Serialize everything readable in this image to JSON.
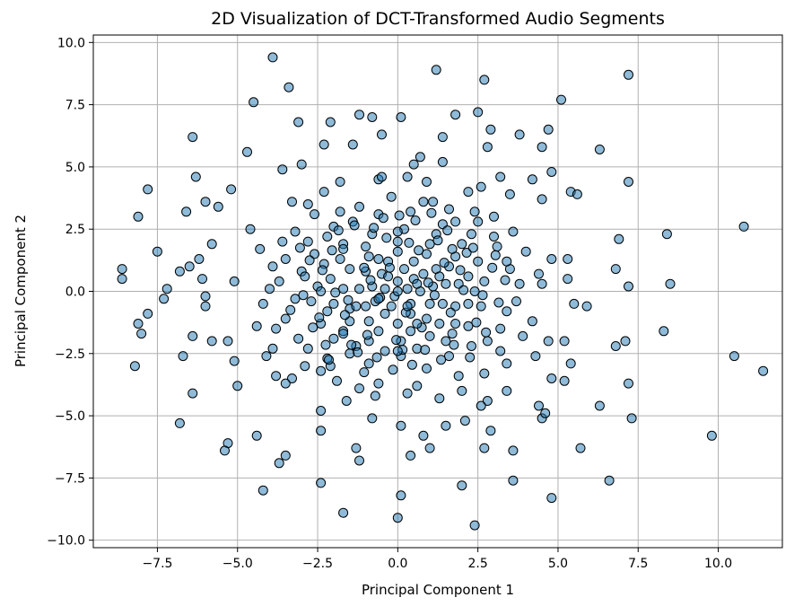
{
  "chart_data": {
    "type": "scatter",
    "title": "2D Visualization of DCT-Transformed Audio Segments",
    "xlabel": "Principal Component 1",
    "ylabel": "Principal Component 2",
    "xlim": [
      -9.5,
      12.0
    ],
    "ylim": [
      -10.3,
      10.3
    ],
    "xticks": [
      -7.5,
      -5.0,
      -2.5,
      0.0,
      2.5,
      5.0,
      7.5,
      10.0
    ],
    "xtick_labels": [
      "−7.5",
      "−5.0",
      "−2.5",
      "0.0",
      "2.5",
      "5.0",
      "7.5",
      "10.0"
    ],
    "yticks": [
      -10.0,
      -7.5,
      -5.0,
      -2.5,
      0.0,
      2.5,
      5.0,
      7.5,
      10.0
    ],
    "ytick_labels": [
      "−10.0",
      "−7.5",
      "−5.0",
      "−2.5",
      "0.0",
      "2.5",
      "5.0",
      "7.5",
      "10.0"
    ],
    "grid": true,
    "marker_color": "#1f77b4",
    "marker_edge_color": "#000000",
    "marker_alpha": 0.5,
    "points": [
      [
        -3.9,
        9.4
      ],
      [
        1.2,
        8.9
      ],
      [
        2.7,
        8.5
      ],
      [
        7.2,
        8.7
      ],
      [
        -3.4,
        8.2
      ],
      [
        -4.5,
        7.6
      ],
      [
        5.1,
        7.7
      ],
      [
        -1.2,
        7.1
      ],
      [
        -0.8,
        7.0
      ],
      [
        0.1,
        7.0
      ],
      [
        1.8,
        7.1
      ],
      [
        2.5,
        7.2
      ],
      [
        -3.1,
        6.8
      ],
      [
        -2.1,
        6.8
      ],
      [
        -6.4,
        6.2
      ],
      [
        -0.5,
        6.3
      ],
      [
        1.4,
        6.2
      ],
      [
        2.9,
        6.5
      ],
      [
        3.8,
        6.3
      ],
      [
        4.7,
        6.5
      ],
      [
        -4.7,
        5.6
      ],
      [
        -1.4,
        5.9
      ],
      [
        -2.3,
        5.9
      ],
      [
        0.7,
        5.4
      ],
      [
        2.8,
        5.8
      ],
      [
        4.5,
        5.8
      ],
      [
        6.3,
        5.7
      ],
      [
        -3.6,
        4.9
      ],
      [
        -3.0,
        5.1
      ],
      [
        0.5,
        5.1
      ],
      [
        1.4,
        5.2
      ],
      [
        3.2,
        4.6
      ],
      [
        4.8,
        4.8
      ],
      [
        -7.8,
        4.1
      ],
      [
        -6.3,
        4.6
      ],
      [
        -5.2,
        4.1
      ],
      [
        -1.8,
        4.4
      ],
      [
        -0.6,
        4.5
      ],
      [
        0.9,
        4.4
      ],
      [
        2.6,
        4.2
      ],
      [
        4.2,
        4.5
      ],
      [
        5.4,
        4.0
      ],
      [
        7.2,
        4.4
      ],
      [
        -6.0,
        3.6
      ],
      [
        -6.6,
        3.2
      ],
      [
        -5.6,
        3.4
      ],
      [
        -3.3,
        3.6
      ],
      [
        -2.8,
        3.5
      ],
      [
        -0.2,
        3.8
      ],
      [
        1.1,
        3.6
      ],
      [
        3.5,
        3.9
      ],
      [
        4.5,
        3.7
      ],
      [
        5.6,
        3.9
      ],
      [
        -8.1,
        3.0
      ],
      [
        -7.5,
        1.6
      ],
      [
        -6.2,
        1.3
      ],
      [
        -5.8,
        1.9
      ],
      [
        -4.6,
        2.5
      ],
      [
        -4.3,
        1.7
      ],
      [
        -6.5,
        1.0
      ],
      [
        -6.8,
        0.8
      ],
      [
        -8.6,
        0.9
      ],
      [
        -8.6,
        0.5
      ],
      [
        -7.2,
        0.1
      ],
      [
        -7.3,
        -0.3
      ],
      [
        -6.1,
        0.5
      ],
      [
        -6.0,
        -0.2
      ],
      [
        -5.1,
        0.4
      ],
      [
        -4.0,
        0.1
      ],
      [
        -6.0,
        -0.6
      ],
      [
        -7.8,
        -0.9
      ],
      [
        -8.1,
        -1.3
      ],
      [
        -8.0,
        -1.7
      ],
      [
        -6.7,
        -2.6
      ],
      [
        -6.4,
        -1.8
      ],
      [
        -5.8,
        -2.0
      ],
      [
        -5.3,
        -2.0
      ],
      [
        -5.1,
        -2.8
      ],
      [
        -4.1,
        -2.6
      ],
      [
        -3.8,
        -3.4
      ],
      [
        -8.2,
        -3.0
      ],
      [
        -5.0,
        -3.8
      ],
      [
        -6.4,
        -4.1
      ],
      [
        -6.8,
        -5.3
      ],
      [
        -4.4,
        -5.8
      ],
      [
        -5.3,
        -6.1
      ],
      [
        -5.4,
        -6.4
      ],
      [
        -3.5,
        -6.6
      ],
      [
        -3.7,
        -6.9
      ],
      [
        -2.4,
        -5.6
      ],
      [
        -2.4,
        -4.8
      ],
      [
        -1.6,
        -4.4
      ],
      [
        -0.8,
        -5.1
      ],
      [
        0.1,
        -5.4
      ],
      [
        0.8,
        -5.8
      ],
      [
        1.5,
        -5.4
      ],
      [
        2.1,
        -5.2
      ],
      [
        2.9,
        -5.6
      ],
      [
        4.5,
        -5.1
      ],
      [
        4.6,
        -4.9
      ],
      [
        6.3,
        -4.6
      ],
      [
        7.3,
        -5.1
      ],
      [
        -1.3,
        -6.3
      ],
      [
        -1.2,
        -6.8
      ],
      [
        0.4,
        -6.6
      ],
      [
        1.0,
        -6.3
      ],
      [
        2.7,
        -6.3
      ],
      [
        3.6,
        -6.4
      ],
      [
        5.7,
        -6.3
      ],
      [
        -2.4,
        -7.7
      ],
      [
        -1.7,
        -8.9
      ],
      [
        -4.2,
        -8.0
      ],
      [
        0.1,
        -8.2
      ],
      [
        0.0,
        -9.1
      ],
      [
        2.0,
        -7.8
      ],
      [
        3.6,
        -7.6
      ],
      [
        4.8,
        -8.3
      ],
      [
        6.6,
        -7.6
      ],
      [
        2.4,
        -9.4
      ],
      [
        7.2,
        -3.7
      ],
      [
        8.3,
        -1.6
      ],
      [
        9.8,
        -5.8
      ],
      [
        10.5,
        -2.6
      ],
      [
        11.4,
        -3.2
      ],
      [
        10.8,
        2.6
      ],
      [
        8.4,
        2.3
      ],
      [
        8.5,
        0.3
      ],
      [
        6.9,
        2.1
      ],
      [
        6.8,
        0.9
      ],
      [
        7.2,
        0.2
      ],
      [
        5.9,
        -0.6
      ],
      [
        5.3,
        1.3
      ],
      [
        5.3,
        0.5
      ],
      [
        5.5,
        -0.5
      ],
      [
        6.8,
        -2.2
      ],
      [
        7.1,
        -2.0
      ],
      [
        5.2,
        -2.0
      ],
      [
        4.7,
        -2.0
      ],
      [
        5.4,
        -2.9
      ],
      [
        5.2,
        -3.6
      ],
      [
        4.8,
        -3.5
      ],
      [
        4.3,
        -2.6
      ],
      [
        3.4,
        -2.9
      ],
      [
        2.7,
        -3.3
      ],
      [
        2.8,
        -4.4
      ],
      [
        2.6,
        -4.6
      ],
      [
        -3.3,
        -3.5
      ],
      [
        -3.5,
        -3.7
      ],
      [
        -2.9,
        -3.0
      ],
      [
        -2.1,
        -3.0
      ],
      [
        -1.2,
        -3.9
      ],
      [
        -0.6,
        -3.7
      ],
      [
        0.3,
        -4.1
      ],
      [
        1.3,
        -4.3
      ],
      [
        2.0,
        -4.0
      ],
      [
        3.4,
        -4.0
      ],
      [
        4.4,
        -4.6
      ],
      [
        4.8,
        1.3
      ],
      [
        4.5,
        0.3
      ],
      [
        3.5,
        0.9
      ],
      [
        3.0,
        2.2
      ],
      [
        2.5,
        2.8
      ],
      [
        1.8,
        2.8
      ],
      [
        -2.0,
        2.6
      ],
      [
        -2.8,
        2.0
      ],
      [
        -3.5,
        1.3
      ],
      [
        -3.0,
        0.8
      ],
      [
        -3.7,
        0.4
      ],
      [
        -3.2,
        -0.3
      ],
      [
        -3.5,
        -1.1
      ],
      [
        -3.8,
        -1.5
      ],
      [
        -3.1,
        -1.9
      ],
      [
        -2.8,
        -2.3
      ],
      [
        -2.2,
        -2.7
      ],
      [
        -1.5,
        -2.5
      ],
      [
        -0.9,
        -2.9
      ],
      [
        0.1,
        -2.6
      ],
      [
        0.9,
        -3.1
      ],
      [
        1.6,
        -2.6
      ],
      [
        2.3,
        -2.2
      ],
      [
        2.8,
        -2.0
      ],
      [
        3.2,
        -1.5
      ],
      [
        3.4,
        -0.8
      ],
      [
        3.7,
        -0.4
      ],
      [
        3.8,
        0.3
      ],
      [
        3.4,
        1.2
      ],
      [
        3.1,
        1.8
      ],
      [
        2.3,
        2.3
      ],
      [
        1.4,
        2.7
      ],
      [
        0.4,
        3.2
      ],
      [
        -0.6,
        3.1
      ],
      [
        -1.4,
        2.8
      ],
      [
        -2.2,
        2.2
      ],
      [
        -2.6,
        1.5
      ],
      [
        -2.9,
        0.6
      ],
      [
        -2.7,
        -0.4
      ],
      [
        -2.4,
        -1.3
      ],
      [
        -2.0,
        -1.9
      ],
      [
        -1.3,
        -2.2
      ],
      [
        -0.4,
        -2.4
      ],
      [
        0.6,
        -2.3
      ],
      [
        1.5,
        -2.0
      ],
      [
        2.2,
        -1.4
      ],
      [
        2.6,
        -0.6
      ],
      [
        2.7,
        0.4
      ],
      [
        2.5,
        1.2
      ],
      [
        2.0,
        1.9
      ],
      [
        1.2,
        2.3
      ],
      [
        0.2,
        2.5
      ],
      [
        -0.8,
        2.3
      ],
      [
        -1.7,
        1.9
      ],
      [
        -2.3,
        1.1
      ],
      [
        -2.5,
        0.2
      ],
      [
        -2.2,
        -0.8
      ],
      [
        -1.7,
        -1.6
      ],
      [
        -0.9,
        -2.0
      ],
      [
        0.1,
        -2.0
      ],
      [
        1.0,
        -1.8
      ],
      [
        1.8,
        -1.3
      ],
      [
        2.2,
        -0.5
      ],
      [
        2.2,
        0.6
      ],
      [
        1.8,
        1.4
      ],
      [
        1.0,
        1.9
      ],
      [
        0.0,
        2.0
      ],
      [
        -1.0,
        1.8
      ],
      [
        -1.8,
        1.3
      ],
      [
        -2.1,
        0.5
      ],
      [
        -2.0,
        -0.5
      ],
      [
        -1.5,
        -1.2
      ],
      [
        -0.6,
        -1.6
      ],
      [
        0.4,
        -1.6
      ],
      [
        1.3,
        -1.3
      ],
      [
        1.8,
        -0.6
      ],
      [
        1.9,
        0.3
      ],
      [
        1.6,
        1.0
      ],
      [
        0.9,
        1.5
      ],
      [
        0.0,
        1.6
      ],
      [
        -0.9,
        1.4
      ],
      [
        -1.5,
        0.9
      ],
      [
        -1.7,
        0.1
      ],
      [
        -1.5,
        -0.7
      ],
      [
        -0.9,
        -1.2
      ],
      [
        0.0,
        -1.3
      ],
      [
        0.9,
        -1.1
      ],
      [
        1.4,
        -0.5
      ],
      [
        1.5,
        0.3
      ],
      [
        1.2,
        0.9
      ],
      [
        0.5,
        1.2
      ],
      [
        -0.3,
        1.2
      ],
      [
        -1.0,
        0.8
      ],
      [
        -1.2,
        0.1
      ],
      [
        -1.0,
        -0.6
      ],
      [
        -0.4,
        -0.9
      ],
      [
        0.4,
        -0.9
      ],
      [
        1.0,
        -0.5
      ],
      [
        1.1,
        0.2
      ],
      [
        0.8,
        0.7
      ],
      [
        0.2,
        0.9
      ],
      [
        -0.5,
        0.7
      ],
      [
        -0.8,
        0.2
      ],
      [
        -0.7,
        -0.4
      ],
      [
        -0.2,
        -0.6
      ],
      [
        0.4,
        -0.5
      ],
      [
        0.7,
        0.0
      ],
      [
        0.5,
        0.5
      ],
      [
        0.0,
        0.4
      ],
      [
        -0.4,
        0.1
      ],
      [
        -0.1,
        -0.2
      ],
      [
        0.3,
        0.1
      ],
      [
        -1.2,
        3.4
      ],
      [
        -1.8,
        3.2
      ],
      [
        0.8,
        3.6
      ],
      [
        1.6,
        3.3
      ],
      [
        -3.6,
        2.0
      ],
      [
        -3.9,
        1.0
      ],
      [
        -4.2,
        -0.5
      ],
      [
        -3.9,
        -2.3
      ],
      [
        -4.4,
        -1.4
      ],
      [
        3.9,
        -1.8
      ],
      [
        4.2,
        -1.2
      ],
      [
        4.4,
        0.7
      ],
      [
        4.0,
        1.6
      ],
      [
        3.6,
        2.4
      ],
      [
        -0.7,
        -4.2
      ],
      [
        0.6,
        -3.8
      ],
      [
        -1.9,
        -3.6
      ],
      [
        1.9,
        -3.4
      ],
      [
        3.0,
        3.0
      ],
      [
        -2.6,
        3.1
      ],
      [
        -2.3,
        4.0
      ],
      [
        2.2,
        4.0
      ],
      [
        0.3,
        4.6
      ],
      [
        -0.5,
        4.6
      ],
      [
        -1.05,
        0.95
      ],
      [
        1.45,
        1.15
      ],
      [
        -1.55,
        -0.35
      ],
      [
        0.75,
        -1.45
      ],
      [
        2.05,
        0.05
      ],
      [
        -0.35,
        2.15
      ],
      [
        0.15,
        -2.35
      ],
      [
        -2.45,
        -1.05
      ],
      [
        1.25,
        2.05
      ],
      [
        2.45,
        -1.25
      ],
      [
        -1.25,
        -2.45
      ],
      [
        0.55,
        2.85
      ],
      [
        -2.05,
        1.65
      ],
      [
        1.75,
        -2.15
      ],
      [
        -0.65,
        -2.65
      ],
      [
        2.95,
        0.95
      ],
      [
        -2.95,
        -0.15
      ],
      [
        0.05,
        3.05
      ],
      [
        -0.15,
        -3.15
      ],
      [
        3.15,
        -0.45
      ],
      [
        -1.85,
        2.45
      ],
      [
        2.15,
        1.55
      ],
      [
        -2.25,
        -2.15
      ],
      [
        1.35,
        -2.75
      ],
      [
        -1.35,
        2.65
      ],
      [
        0.95,
        0.35
      ],
      [
        -0.55,
        -0.25
      ],
      [
        0.25,
        -0.85
      ],
      [
        -0.85,
        0.45
      ],
      [
        1.15,
        -0.15
      ],
      [
        -0.25,
        0.95
      ],
      [
        0.65,
        1.65
      ],
      [
        -1.65,
        -0.95
      ],
      [
        1.65,
        -0.85
      ],
      [
        -0.95,
        -1.75
      ],
      [
        0.35,
        1.95
      ],
      [
        -1.95,
        -0.05
      ],
      [
        1.95,
        0.85
      ],
      [
        -0.05,
        -1.95
      ],
      [
        2.35,
        1.75
      ],
      [
        -2.35,
        0.85
      ],
      [
        0.85,
        -2.35
      ],
      [
        -0.75,
        2.55
      ],
      [
        2.65,
        -0.15
      ],
      [
        -2.65,
        -1.45
      ],
      [
        1.55,
        2.45
      ],
      [
        -1.45,
        -2.15
      ],
      [
        2.75,
        -1.65
      ],
      [
        -2.75,
        1.25
      ],
      [
        0.45,
        -2.95
      ],
      [
        -0.45,
        2.95
      ],
      [
        3.35,
        0.45
      ],
      [
        -3.35,
        -0.75
      ],
      [
        1.05,
        3.15
      ],
      [
        -1.05,
        -3.25
      ],
      [
        3.05,
        1.45
      ],
      [
        -3.05,
        1.75
      ],
      [
        2.25,
        -2.65
      ],
      [
        -2.15,
        -2.75
      ],
      [
        0.0,
        0.0
      ],
      [
        0.6,
        0.3
      ],
      [
        -0.3,
        0.6
      ],
      [
        -0.6,
        -0.3
      ],
      [
        0.3,
        -0.6
      ],
      [
        1.3,
        0.6
      ],
      [
        -0.6,
        1.3
      ],
      [
        -1.3,
        -0.6
      ],
      [
        0.6,
        -1.3
      ],
      [
        1.7,
        1.7
      ],
      [
        -1.7,
        1.7
      ],
      [
        -1.7,
        -1.7
      ],
      [
        1.7,
        -1.7
      ],
      [
        2.4,
        0.0
      ],
      [
        0.0,
        2.4
      ],
      [
        -2.4,
        0.0
      ],
      [
        0.0,
        -2.4
      ],
      [
        3.2,
        -2.4
      ],
      [
        -3.2,
        2.4
      ],
      [
        2.4,
        3.2
      ],
      [
        -2.4,
        -3.2
      ]
    ]
  }
}
